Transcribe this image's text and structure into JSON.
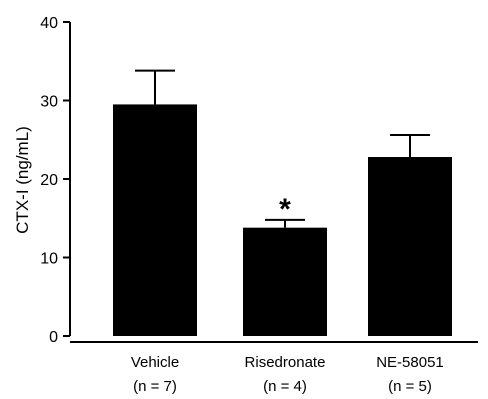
{
  "chart_data": {
    "type": "bar",
    "title": "",
    "xlabel": "",
    "ylabel": "CTX-I (ng/mL)",
    "ylim": [
      0,
      40
    ],
    "yticks": [
      0,
      10,
      20,
      30,
      40
    ],
    "grid": false,
    "bar_color": "#000000",
    "categories": [
      {
        "name": "Vehicle",
        "n_label": "(n = 7)"
      },
      {
        "name": "Risedronate",
        "n_label": "(n = 4)"
      },
      {
        "name": "NE-58051",
        "n_label": "(n = 5)"
      }
    ],
    "values": [
      29.5,
      13.8,
      22.8
    ],
    "error_upper": [
      4.3,
      1.0,
      2.8
    ],
    "annotations": [
      {
        "category_index": 1,
        "text": "*"
      }
    ]
  }
}
